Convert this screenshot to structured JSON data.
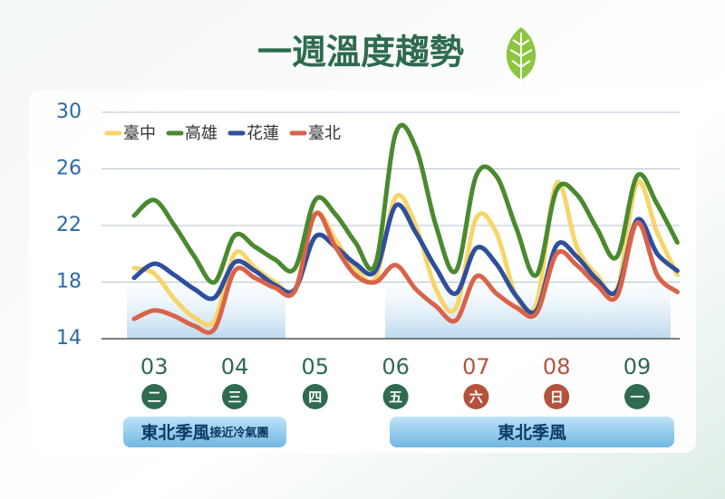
{
  "chart_data": {
    "type": "line",
    "title": "一週溫度趨勢",
    "categories": [
      null,
      "03",
      null,
      null,
      null,
      "04",
      null,
      null,
      null,
      "05",
      null,
      null,
      null,
      "06",
      null,
      null,
      null,
      "07",
      null,
      null,
      null,
      "08",
      null,
      null,
      null,
      "09",
      null,
      null
    ],
    "weekdays": [
      null,
      "二",
      null,
      null,
      null,
      "三",
      null,
      null,
      null,
      "四",
      null,
      null,
      null,
      "五",
      null,
      null,
      null,
      "六",
      null,
      null,
      null,
      "日",
      null,
      null,
      null,
      "一",
      null,
      null
    ],
    "day_colors": [
      null,
      "#2e6b4f",
      null,
      null,
      null,
      "#2e6b4f",
      null,
      null,
      null,
      "#2e6b4f",
      null,
      null,
      null,
      "#2e6b4f",
      null,
      null,
      null,
      "#b5523d",
      null,
      null,
      null,
      "#b5523d",
      null,
      null,
      null,
      "#2e6b4f",
      null,
      null
    ],
    "series": [
      {
        "name": "臺中",
        "color": "#f7d56a",
        "values": [
          19.0,
          18.6,
          16.8,
          15.5,
          15.3,
          20.0,
          19.0,
          18.0,
          17.5,
          22.8,
          21.0,
          19.0,
          18.3,
          24.0,
          22.0,
          17.5,
          16.2,
          22.5,
          21.5,
          17.0,
          16.5,
          25.0,
          20.5,
          18.5,
          17.5,
          25.0,
          21.5,
          18.5
        ]
      },
      {
        "name": "高雄",
        "color": "#4a8a2f",
        "values": [
          22.7,
          23.8,
          22.0,
          19.8,
          18.0,
          21.3,
          20.5,
          19.6,
          19.0,
          23.8,
          22.8,
          20.8,
          19.3,
          28.5,
          27.5,
          22.0,
          18.8,
          25.5,
          25.5,
          21.8,
          18.5,
          24.5,
          24.2,
          21.8,
          19.8,
          25.5,
          23.5,
          20.8
        ]
      },
      {
        "name": "花蓮",
        "color": "#2f4f9e",
        "values": [
          18.3,
          19.3,
          18.5,
          17.5,
          16.9,
          19.4,
          18.8,
          17.8,
          17.5,
          21.2,
          20.5,
          19.3,
          18.8,
          23.4,
          21.5,
          19.0,
          17.2,
          20.4,
          19.3,
          17.0,
          16.0,
          20.6,
          19.8,
          18.2,
          17.4,
          22.4,
          20.0,
          18.8
        ]
      },
      {
        "name": "臺北",
        "color": "#d9634a",
        "values": [
          15.4,
          16.0,
          15.6,
          14.9,
          14.7,
          18.8,
          18.3,
          17.6,
          17.4,
          22.8,
          20.5,
          18.5,
          18.0,
          19.2,
          17.5,
          16.3,
          15.3,
          18.4,
          17.2,
          16.2,
          15.8,
          20.0,
          19.2,
          17.8,
          17.0,
          22.2,
          18.5,
          17.3
        ]
      }
    ],
    "ylim": [
      14,
      30
    ],
    "yticks": [
      14,
      18,
      22,
      26,
      30
    ],
    "grid": true,
    "annotations": [
      {
        "label": "東北季風",
        "sub": "接近冷氣團"
      },
      {
        "label": "東北季風"
      }
    ]
  }
}
